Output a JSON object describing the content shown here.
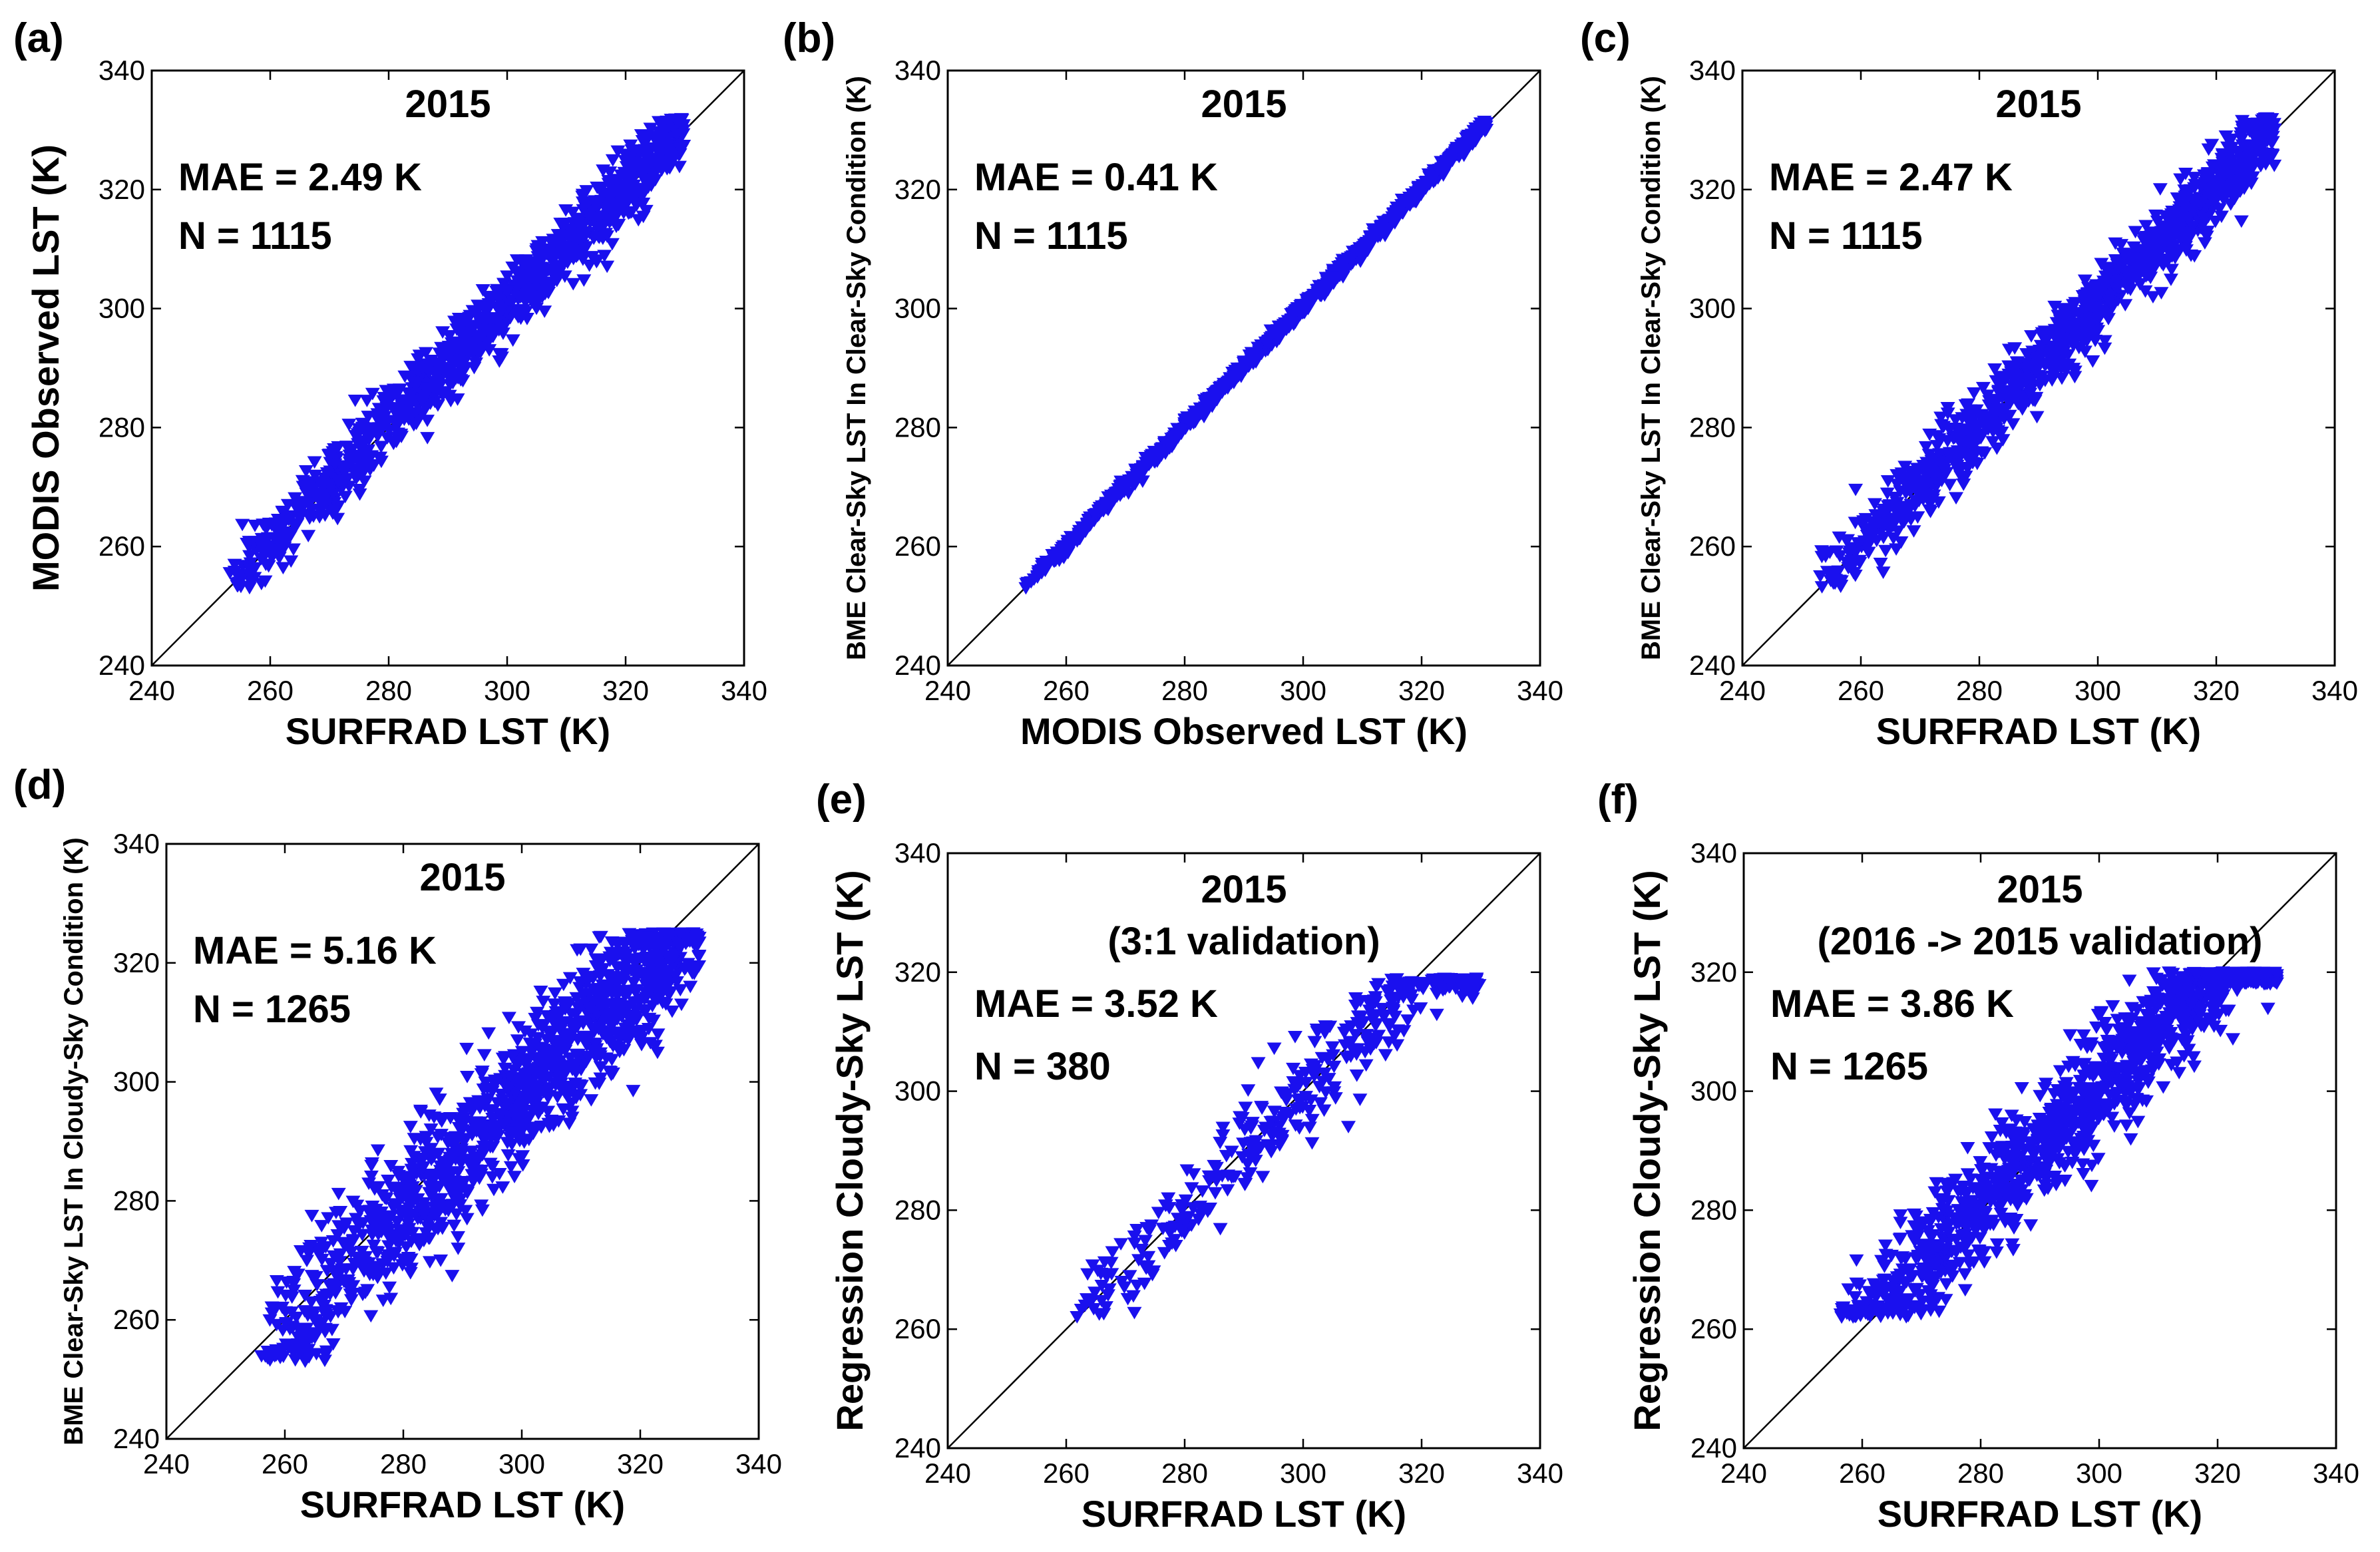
{
  "figure": {
    "colors": {
      "marker": "#1a10ee",
      "line": "#000000",
      "background": "#ffffff"
    }
  },
  "chart_data": [
    {
      "id": "a",
      "type": "scatter",
      "panel_label": "(a)",
      "xlabel": "SURFRAD LST (K)",
      "ylabel": "MODIS Observed LST (K)",
      "xlim": [
        240,
        340
      ],
      "ylim": [
        240,
        340
      ],
      "xticks": [
        240,
        260,
        280,
        300,
        320,
        340
      ],
      "yticks": [
        240,
        260,
        280,
        300,
        320,
        340
      ],
      "xtick_labels": [
        "240",
        "260",
        "280",
        "300",
        "320",
        "340"
      ],
      "ytick_labels": [
        "240",
        "260",
        "280",
        "300",
        "320",
        "340"
      ],
      "marker": "triangle-down",
      "reference_line": "1:1",
      "annotations": [
        "2015",
        "MAE = 2.49 K",
        "N = 1115"
      ],
      "summary": {
        "year": 2015,
        "mae_k": 2.49,
        "n": 1115
      },
      "distribution": {
        "x_range": [
          253,
          330
        ],
        "y_range": [
          253,
          332
        ],
        "spread_k": 3.1,
        "bias_k": 0.3
      }
    },
    {
      "id": "b",
      "type": "scatter",
      "panel_label": "(b)",
      "xlabel": "MODIS Observed  LST (K)",
      "ylabel": "BME Clear-Sky LST In Clear-Sky Condition (K)",
      "xlim": [
        240,
        340
      ],
      "ylim": [
        240,
        340
      ],
      "xticks": [
        240,
        260,
        280,
        300,
        320,
        340
      ],
      "yticks": [
        240,
        260,
        280,
        300,
        320,
        340
      ],
      "xtick_labels": [
        "240",
        "260",
        "280",
        "300",
        "320",
        "340"
      ],
      "ytick_labels": [
        "240",
        "260",
        "280",
        "300",
        "320",
        "340"
      ],
      "marker": "triangle-down",
      "reference_line": "1:1",
      "annotations": [
        "2015",
        "MAE = 0.41 K",
        "N = 1115"
      ],
      "summary": {
        "year": 2015,
        "mae_k": 0.41,
        "n": 1115
      },
      "distribution": {
        "x_range": [
          253,
          331
        ],
        "y_range": [
          253,
          332
        ],
        "spread_k": 0.55,
        "bias_k": 0.0
      }
    },
    {
      "id": "c",
      "type": "scatter",
      "panel_label": "(c)",
      "xlabel": "SURFRAD LST (K)",
      "ylabel": "BME Clear-Sky LST In Clear-Sky Condition (K)",
      "xlim": [
        240,
        340
      ],
      "ylim": [
        240,
        340
      ],
      "xticks": [
        240,
        260,
        280,
        300,
        320,
        340
      ],
      "yticks": [
        240,
        260,
        280,
        300,
        320,
        340
      ],
      "xtick_labels": [
        "240",
        "260",
        "280",
        "300",
        "320",
        "340"
      ],
      "ytick_labels": [
        "240",
        "260",
        "280",
        "300",
        "320",
        "340"
      ],
      "marker": "triangle-down",
      "reference_line": "1:1",
      "annotations": [
        "2015",
        "MAE = 2.47 K",
        "N = 1115"
      ],
      "summary": {
        "year": 2015,
        "mae_k": 2.47,
        "n": 1115
      },
      "distribution": {
        "x_range": [
          253,
          330
        ],
        "y_range": [
          253,
          332
        ],
        "spread_k": 3.1,
        "bias_k": 0.3
      }
    },
    {
      "id": "d",
      "type": "scatter",
      "panel_label": "(d)",
      "xlabel": "SURFRAD LST (K)",
      "ylabel": "BME Clear-Sky LST In Cloudy-Sky Condition (K)",
      "xlim": [
        240,
        340
      ],
      "ylim": [
        240,
        340
      ],
      "xticks": [
        240,
        260,
        280,
        300,
        320,
        340
      ],
      "yticks": [
        240,
        260,
        280,
        300,
        320,
        340
      ],
      "xtick_labels": [
        "240",
        "260",
        "280",
        "300",
        "320",
        "340"
      ],
      "ytick_labels": [
        "240",
        "260",
        "280",
        "300",
        "320",
        "340"
      ],
      "marker": "triangle-down",
      "reference_line": "1:1",
      "annotations": [
        "2015",
        "MAE = 5.16 K",
        "N = 1265"
      ],
      "summary": {
        "year": 2015,
        "mae_k": 5.16,
        "n": 1265
      },
      "distribution": {
        "x_range": [
          256,
          330
        ],
        "y_range": [
          253,
          325
        ],
        "spread_k": 6.2,
        "bias_k": -2.0
      }
    },
    {
      "id": "e",
      "type": "scatter",
      "panel_label": "(e)",
      "xlabel": "SURFRAD LST (K)",
      "ylabel": "Regression Cloudy-Sky LST (K)",
      "xlim": [
        240,
        340
      ],
      "ylim": [
        240,
        340
      ],
      "xticks": [
        240,
        260,
        280,
        300,
        320,
        340
      ],
      "yticks": [
        240,
        260,
        280,
        300,
        320,
        340
      ],
      "xtick_labels": [
        "240",
        "260",
        "280",
        "300",
        "320",
        "340"
      ],
      "ytick_labels": [
        "240",
        "260",
        "280",
        "300",
        "320",
        "340"
      ],
      "marker": "triangle-down",
      "reference_line": "1:1",
      "annotations": [
        "2015",
        "(3:1 validation)",
        "MAE = 3.52 K",
        "N = 380"
      ],
      "summary": {
        "year": 2015,
        "validation": "3:1",
        "mae_k": 3.52,
        "n": 380
      },
      "distribution": {
        "x_range": [
          261,
          330
        ],
        "y_range": [
          262,
          319
        ],
        "spread_k": 4.2,
        "bias_k": -0.5
      }
    },
    {
      "id": "f",
      "type": "scatter",
      "panel_label": "(f)",
      "xlabel": "SURFRAD LST (K)",
      "ylabel": "Regression Cloudy-Sky LST (K)",
      "xlim": [
        240,
        340
      ],
      "ylim": [
        240,
        340
      ],
      "xticks": [
        240,
        260,
        280,
        300,
        320,
        340
      ],
      "yticks": [
        240,
        260,
        280,
        300,
        320,
        340
      ],
      "xtick_labels": [
        "240",
        "260",
        "280",
        "300",
        "320",
        "340"
      ],
      "ytick_labels": [
        "240",
        "260",
        "280",
        "300",
        "320",
        "340"
      ],
      "marker": "triangle-down",
      "reference_line": "1:1",
      "annotations": [
        "2015",
        "(2016 -> 2015 validation)",
        "MAE = 3.86 K",
        "N = 1265"
      ],
      "summary": {
        "year": 2015,
        "validation": "2016 -> 2015",
        "mae_k": 3.86,
        "n": 1265
      },
      "distribution": {
        "x_range": [
          256,
          330
        ],
        "y_range": [
          262,
          320
        ],
        "spread_k": 4.6,
        "bias_k": 0.5
      }
    }
  ]
}
